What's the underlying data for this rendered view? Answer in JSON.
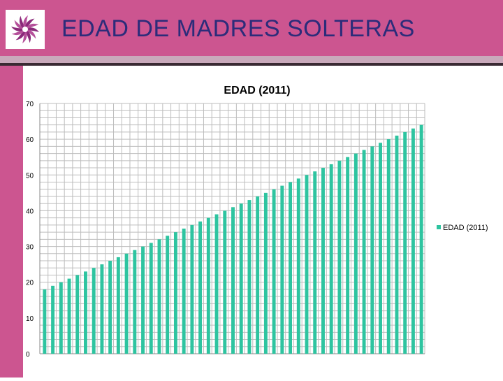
{
  "slide": {
    "title": "EDAD DE MADRES SOLTERAS"
  },
  "colors": {
    "header": "#cc5590",
    "title_text": "#2c2c7a",
    "bar": "#2ec4a0",
    "grid": "#bdbdbd"
  },
  "logo": {
    "icon": "spiral-swirl-logo-icon"
  },
  "chart_data": {
    "type": "bar",
    "title": "EDAD (2011)",
    "xlabel": "",
    "ylabel": "",
    "ylim": [
      0,
      70
    ],
    "yticks": [
      0,
      10,
      20,
      30,
      40,
      50,
      60,
      70
    ],
    "grid": true,
    "legend_position": "right",
    "series": [
      {
        "name": "EDAD (2011)",
        "values": [
          18,
          19,
          20,
          21,
          22,
          23,
          24,
          25,
          26,
          27,
          28,
          29,
          30,
          31,
          32,
          33,
          34,
          35,
          36,
          37,
          38,
          39,
          40,
          41,
          42,
          43,
          44,
          45,
          46,
          47,
          48,
          49,
          50,
          51,
          52,
          53,
          54,
          55,
          56,
          57,
          58,
          59,
          60,
          61,
          62,
          63,
          64
        ]
      }
    ]
  }
}
